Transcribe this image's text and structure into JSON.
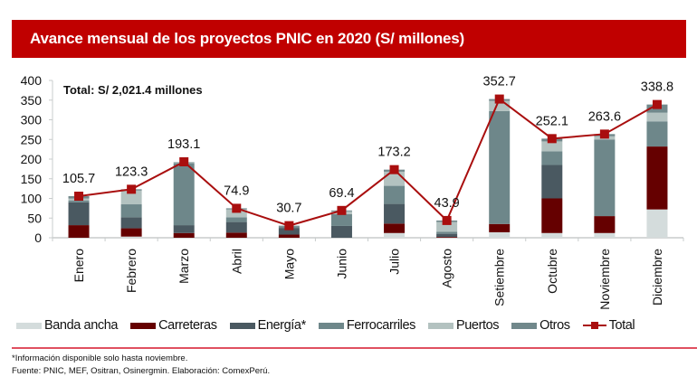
{
  "header": {
    "title": "Avance mensual de los proyectos PNIC en 2020 (S/ millones)"
  },
  "chart_data": {
    "type": "bar",
    "stacked": true,
    "title": "Avance mensual de los proyectos PNIC en 2020 (S/ millones)",
    "annotation": "Total: S/ 2,021.4 millones",
    "xlabel": "",
    "ylabel": "",
    "ylim": [
      0,
      400
    ],
    "yticks": [
      0,
      50,
      100,
      150,
      200,
      250,
      300,
      350,
      400
    ],
    "grid": false,
    "legend_position": "bottom",
    "categories": [
      "Enero",
      "Febrero",
      "Marzo",
      "Abril",
      "Mayo",
      "Junio",
      "Julio",
      "Agosto",
      "Setiembre",
      "Octubre",
      "Noviembre",
      "Diciembre"
    ],
    "series": [
      {
        "name": "Banda ancha",
        "color": "#d4dcdc",
        "values": [
          0,
          3,
          0,
          0,
          0,
          0,
          12,
          0,
          14,
          12,
          12,
          72
        ]
      },
      {
        "name": "Carreteras",
        "color": "#650000",
        "values": [
          32,
          21,
          12,
          13,
          8,
          0,
          24,
          2,
          21,
          88,
          43,
          160
        ]
      },
      {
        "name": "Energía*",
        "color": "#4a5961",
        "values": [
          58,
          28,
          20,
          27,
          17,
          30,
          50,
          8,
          0,
          85,
          0,
          0
        ]
      },
      {
        "name": "Ferrocarriles",
        "color": "#6e878a",
        "values": [
          5,
          33,
          158,
          12,
          4,
          30,
          46,
          5,
          287,
          35,
          195,
          64
        ]
      },
      {
        "name": "Puertos",
        "color": "#b3c2c0",
        "values": [
          5,
          35,
          3,
          20,
          0,
          7,
          36,
          25,
          26,
          25,
          8,
          22
        ]
      },
      {
        "name": "Otros",
        "color": "#71888b",
        "values": [
          5.7,
          3.3,
          0.1,
          2.9,
          1.7,
          2.4,
          5.2,
          3.9,
          4.7,
          7.1,
          5.6,
          20.8
        ]
      }
    ],
    "line_series": {
      "name": "Total",
      "color": "#a90e0e",
      "values": [
        105.7,
        123.3,
        193.1,
        74.9,
        30.7,
        69.4,
        173.2,
        43.9,
        352.7,
        252.1,
        263.6,
        338.8
      ],
      "labels": [
        "105.7",
        "123.3",
        "193.1",
        "74.9",
        "30.7",
        "69.4",
        "173.2",
        "43.9",
        "352.7",
        "252.1",
        "263.6",
        "338.8"
      ]
    }
  },
  "legend": [
    {
      "label": "Banda ancha",
      "color": "#d4dcdc",
      "kind": "box"
    },
    {
      "label": "Carreteras",
      "color": "#650000",
      "kind": "box"
    },
    {
      "label": "Energía*",
      "color": "#4a5961",
      "kind": "box"
    },
    {
      "label": "Ferrocarriles",
      "color": "#6e878a",
      "kind": "box"
    },
    {
      "label": "Puertos",
      "color": "#b3c2c0",
      "kind": "box"
    },
    {
      "label": "Otros",
      "color": "#71888b",
      "kind": "box"
    },
    {
      "label": "Total",
      "color": "#a90e0e",
      "kind": "line"
    }
  ],
  "footer": {
    "note": "*Información disponible solo hasta noviembre.",
    "source": "Fuente: PNIC, MEF, Ositran, Osinergmin. Elaboración: ComexPerú."
  }
}
